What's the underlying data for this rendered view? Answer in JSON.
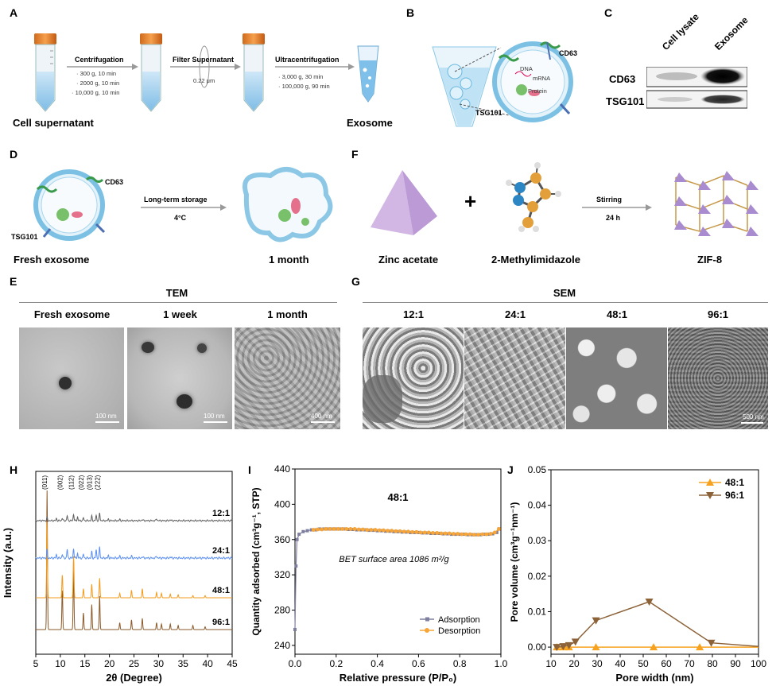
{
  "panels": {
    "A": {
      "label": "A",
      "start_label": "Cell supernatant",
      "end_label": "Exosome",
      "step1": {
        "title": "Centrifugation",
        "lines": [
          "· 300 g, 10 min",
          "· 2000 g, 10 min",
          "· 10,000 g, 10 min"
        ]
      },
      "step2": {
        "title": "Filter Supernatant",
        "filter": "0.22 μm"
      },
      "step3": {
        "title": "Ultracentrifugation",
        "lines": [
          "· 3,000 g, 30 min",
          "· 100,000 g, 90 min"
        ]
      }
    },
    "B": {
      "label": "B",
      "cd63": "CD63",
      "tsg101": "TSG101",
      "dna": "DNA",
      "mrna": "mRNA",
      "protein": "Protein"
    },
    "C": {
      "label": "C",
      "col1": "Cell lysate",
      "col2": "Exosome",
      "row1": "CD63",
      "row2": "TSG101"
    },
    "D": {
      "label": "D",
      "cd63": "CD63",
      "tsg101": "TSG101",
      "arrow_title": "Long-term storage",
      "arrow_sub": "4°C",
      "left_caption": "Fresh exosome",
      "right_caption": "1 month"
    },
    "F": {
      "label": "F",
      "reagent1": "Zinc acetate",
      "plus": "+",
      "reagent2": "2-Methylimidazole",
      "arrow_title": "Stirring",
      "arrow_sub": "24 h",
      "product": "ZIF-8"
    },
    "E": {
      "label": "E",
      "header": "TEM",
      "cols": [
        "Fresh exosome",
        "1 week",
        "1 month"
      ],
      "scalebars": [
        "100 nm",
        "100 nm",
        "400 nm"
      ]
    },
    "G": {
      "label": "G",
      "header": "SEM",
      "cols": [
        "12:1",
        "24:1",
        "48:1",
        "96:1"
      ],
      "scalebar": "500 nm"
    },
    "H": {
      "label": "H"
    },
    "I": {
      "label": "I"
    },
    "J": {
      "label": "J"
    }
  },
  "chart_data": [
    {
      "id": "H",
      "type": "line",
      "xlabel": "2θ (Degree)",
      "ylabel": "Intensity (a.u.)",
      "xlim": [
        5,
        45
      ],
      "xticks": [
        5,
        10,
        15,
        20,
        25,
        30,
        35,
        40,
        45
      ],
      "peak_labels": [
        {
          "x": 7.3,
          "label": "(011)"
        },
        {
          "x": 10.4,
          "label": "(002)"
        },
        {
          "x": 12.7,
          "label": "(112)"
        },
        {
          "x": 14.7,
          "label": "(022)"
        },
        {
          "x": 16.4,
          "label": "(013)"
        },
        {
          "x": 18.0,
          "label": "(222)"
        }
      ],
      "series": [
        {
          "name": "96:1",
          "color": "#8B5A2B",
          "peaks": [
            [
              7.3,
              1.0
            ],
            [
              10.4,
              0.28
            ],
            [
              12.7,
              0.42
            ],
            [
              14.7,
              0.12
            ],
            [
              16.4,
              0.18
            ],
            [
              18.0,
              0.24
            ],
            [
              22.1,
              0.05
            ],
            [
              24.5,
              0.07
            ],
            [
              26.7,
              0.08
            ],
            [
              29.6,
              0.05
            ],
            [
              30.6,
              0.04
            ],
            [
              32.4,
              0.04
            ],
            [
              34.0,
              0.03
            ],
            [
              37.0,
              0.03
            ],
            [
              39.5,
              0.02
            ]
          ]
        },
        {
          "name": "48:1",
          "color": "#F29B1D",
          "peaks": [
            [
              7.3,
              1.0
            ],
            [
              10.4,
              0.3
            ],
            [
              12.7,
              0.55
            ],
            [
              14.7,
              0.12
            ],
            [
              16.4,
              0.18
            ],
            [
              18.0,
              0.26
            ],
            [
              22.1,
              0.06
            ],
            [
              24.5,
              0.1
            ],
            [
              26.7,
              0.12
            ],
            [
              29.6,
              0.07
            ],
            [
              30.6,
              0.06
            ],
            [
              32.4,
              0.05
            ],
            [
              34.0,
              0.04
            ],
            [
              37.0,
              0.03
            ],
            [
              39.5,
              0.03
            ]
          ]
        },
        {
          "name": "24:1",
          "color": "#5B8FF0",
          "peaks": [
            [
              7.3,
              0.25
            ],
            [
              9.2,
              0.1
            ],
            [
              10.4,
              0.12
            ],
            [
              11.4,
              0.28
            ],
            [
              12.7,
              0.3
            ],
            [
              13.5,
              0.15
            ],
            [
              14.7,
              0.12
            ],
            [
              16.4,
              0.2
            ],
            [
              17.3,
              0.25
            ],
            [
              18.0,
              0.35
            ],
            [
              19.8,
              0.08
            ],
            [
              22.1,
              0.06
            ],
            [
              24.5,
              0.06
            ],
            [
              26.7,
              0.05
            ],
            [
              29.6,
              0.07
            ],
            [
              32.4,
              0.04
            ]
          ]
        },
        {
          "name": "12:1",
          "color": "#606060",
          "peaks": [
            [
              7.3,
              0.12
            ],
            [
              9.2,
              0.08
            ],
            [
              10.4,
              0.1
            ],
            [
              11.4,
              0.2
            ],
            [
              12.7,
              0.25
            ],
            [
              13.5,
              0.15
            ],
            [
              14.7,
              0.12
            ],
            [
              16.4,
              0.18
            ],
            [
              17.3,
              0.2
            ],
            [
              18.0,
              0.3
            ],
            [
              19.8,
              0.06
            ],
            [
              22.1,
              0.05
            ],
            [
              26.7,
              0.05
            ],
            [
              29.6,
              0.08
            ],
            [
              32.4,
              0.04
            ]
          ]
        }
      ]
    },
    {
      "id": "I",
      "type": "scatter",
      "title": "48:1",
      "annotation": "BET surface area 1086 m²/g",
      "xlabel": "Relative pressure (P/P₀)",
      "ylabel": "Quantity adsorbed (cm³g⁻¹, STP)",
      "xlim": [
        0,
        1.0
      ],
      "ylim": [
        230,
        440
      ],
      "xticks": [
        0.0,
        0.2,
        0.4,
        0.6,
        0.8,
        1.0
      ],
      "yticks": [
        240,
        280,
        320,
        360,
        400,
        440
      ],
      "series": [
        {
          "name": "Adsorption",
          "color": "#7F7F9F",
          "x": [
            0.0,
            0.005,
            0.01,
            0.02,
            0.04,
            0.06,
            0.08,
            0.1,
            0.12,
            0.14,
            0.16,
            0.18,
            0.2,
            0.22,
            0.24,
            0.26,
            0.28,
            0.3,
            0.32,
            0.34,
            0.36,
            0.38,
            0.4,
            0.42,
            0.44,
            0.46,
            0.48,
            0.5,
            0.52,
            0.54,
            0.56,
            0.58,
            0.6,
            0.62,
            0.64,
            0.66,
            0.68,
            0.7,
            0.72,
            0.74,
            0.76,
            0.78,
            0.8,
            0.82,
            0.84,
            0.86,
            0.88,
            0.9,
            0.92,
            0.94,
            0.96,
            0.98,
            0.99
          ],
          "y": [
            258,
            330,
            360,
            366,
            369,
            370,
            371,
            371,
            372,
            372,
            372,
            372,
            372,
            372,
            372,
            371.5,
            371.5,
            371,
            371,
            371,
            370.5,
            370.5,
            370,
            370,
            369.5,
            369.5,
            369,
            369,
            368.5,
            368.5,
            368,
            368,
            368,
            367.5,
            367.5,
            367,
            367,
            367,
            366.5,
            366.5,
            366,
            366,
            366,
            366,
            365.5,
            365.5,
            365.5,
            365.5,
            366,
            366,
            366.5,
            368,
            372
          ]
        },
        {
          "name": "Desorption",
          "color": "#F7A537",
          "x": [
            0.99,
            0.97,
            0.95,
            0.93,
            0.91,
            0.89,
            0.87,
            0.85,
            0.83,
            0.81,
            0.79,
            0.77,
            0.75,
            0.73,
            0.71,
            0.69,
            0.67,
            0.65,
            0.63,
            0.61,
            0.59,
            0.57,
            0.55,
            0.53,
            0.51,
            0.49,
            0.47,
            0.45,
            0.43,
            0.41,
            0.39,
            0.37,
            0.35,
            0.33,
            0.31,
            0.29,
            0.27,
            0.25,
            0.23,
            0.21,
            0.19,
            0.17,
            0.15,
            0.13,
            0.11,
            0.09
          ],
          "y": [
            372,
            368,
            366.5,
            366,
            366,
            365.5,
            365.5,
            366,
            366,
            366,
            366.5,
            366.5,
            367,
            367,
            367,
            367.5,
            367.5,
            368,
            368,
            368,
            368.5,
            368.5,
            369,
            369,
            369.5,
            369.5,
            370,
            370,
            370.5,
            370.5,
            371,
            371,
            371,
            371.5,
            371.5,
            372,
            372,
            372,
            372,
            372,
            372,
            372,
            372,
            371.5,
            371.5,
            371
          ]
        }
      ]
    },
    {
      "id": "J",
      "type": "line",
      "xlabel": "Pore width (nm)",
      "ylabel": "Pore volume (cm³g⁻¹nm⁻¹)",
      "xlim": [
        10,
        100
      ],
      "ylim": [
        -0.002,
        0.05
      ],
      "xticks": [
        10,
        20,
        30,
        40,
        50,
        60,
        70,
        80,
        90,
        100
      ],
      "yticks": [
        0.0,
        0.01,
        0.02,
        0.03,
        0.04,
        0.05
      ],
      "series": [
        {
          "name": "48:1",
          "color": "#F7A21E",
          "marker": "up",
          "x": [
            12.5,
            15.3,
            17.8,
            29.5,
            54.5,
            74.5,
            100
          ],
          "y": [
            0.0,
            0.0,
            0.0,
            0.0,
            0.0,
            0.0,
            0.0
          ]
        },
        {
          "name": "96:1",
          "color": "#8C6239",
          "marker": "down",
          "x": [
            12.5,
            15.3,
            17.8,
            20.6,
            29.5,
            52.6,
            79.5,
            100
          ],
          "y": [
            0.0,
            0.0002,
            0.0005,
            0.0015,
            0.0075,
            0.0128,
            0.0012,
            0.0002
          ]
        }
      ]
    }
  ]
}
